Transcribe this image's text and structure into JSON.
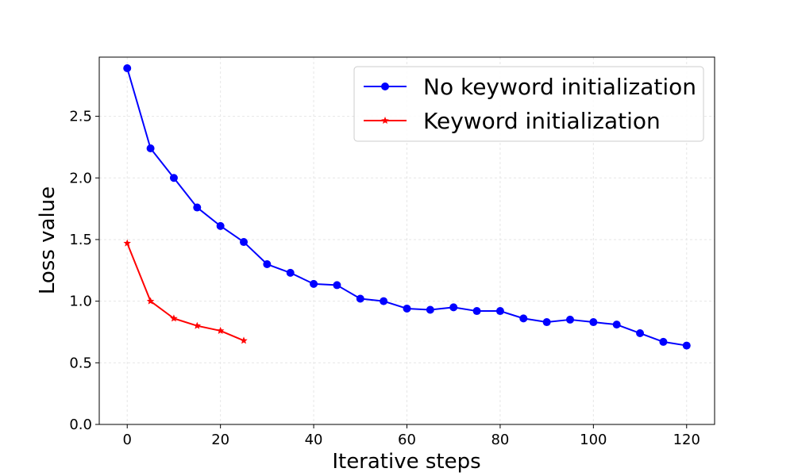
{
  "chart_data": {
    "type": "line",
    "title": "",
    "xlabel": "Iterative steps",
    "ylabel": "Loss value",
    "xlim": [
      -6,
      126
    ],
    "ylim": [
      0,
      2.98
    ],
    "xticks": [
      0,
      20,
      40,
      60,
      80,
      100,
      120
    ],
    "yticks": [
      0.0,
      0.5,
      1.0,
      1.5,
      2.0,
      2.5
    ],
    "xtick_labels": [
      "0",
      "20",
      "40",
      "60",
      "80",
      "100",
      "120"
    ],
    "ytick_labels": [
      "0.0",
      "0.5",
      "1.0",
      "1.5",
      "2.0",
      "2.5"
    ],
    "grid": true,
    "legend_position": "top-right",
    "series": [
      {
        "name": "No keyword initialization",
        "color": "#0000ff",
        "marker": "circle",
        "x": [
          0,
          5,
          10,
          15,
          20,
          25,
          30,
          35,
          40,
          45,
          50,
          55,
          60,
          65,
          70,
          75,
          80,
          85,
          90,
          95,
          100,
          105,
          110,
          115,
          120
        ],
        "y": [
          2.89,
          2.24,
          2.0,
          1.76,
          1.61,
          1.48,
          1.3,
          1.23,
          1.14,
          1.13,
          1.02,
          1.0,
          0.94,
          0.93,
          0.95,
          0.92,
          0.92,
          0.86,
          0.83,
          0.85,
          0.83,
          0.81,
          0.74,
          0.67,
          0.64
        ]
      },
      {
        "name": "Keyword initialization",
        "color": "#ff0000",
        "marker": "star",
        "x": [
          0,
          5,
          10,
          15,
          20,
          25
        ],
        "y": [
          1.47,
          1.0,
          0.86,
          0.8,
          0.76,
          0.68
        ]
      }
    ]
  }
}
